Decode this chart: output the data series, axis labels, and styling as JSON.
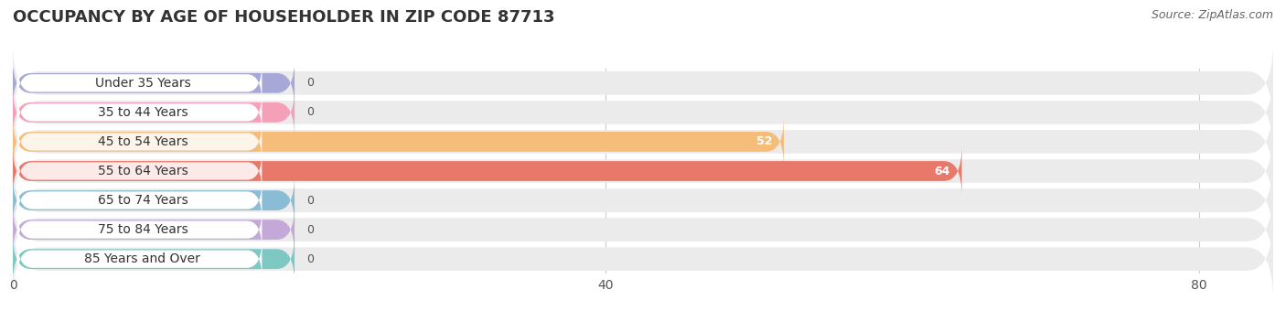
{
  "title": "OCCUPANCY BY AGE OF HOUSEHOLDER IN ZIP CODE 87713",
  "source": "Source: ZipAtlas.com",
  "categories": [
    "Under 35 Years",
    "35 to 44 Years",
    "45 to 54 Years",
    "55 to 64 Years",
    "65 to 74 Years",
    "75 to 84 Years",
    "85 Years and Over"
  ],
  "values": [
    0,
    0,
    52,
    64,
    0,
    0,
    0
  ],
  "bar_colors": [
    "#a8a8d8",
    "#f4a0b8",
    "#f5bc7a",
    "#e8796a",
    "#8abcd6",
    "#c4a8d8",
    "#7ec8c4"
  ],
  "xlim_max": 85,
  "xticks": [
    0,
    40,
    80
  ],
  "label_color_nonzero": "#ffffff",
  "label_color_zero": "#555555",
  "title_fontsize": 13,
  "source_fontsize": 9,
  "bar_label_fontsize": 9,
  "category_fontsize": 10,
  "tick_fontsize": 10,
  "bar_height": 0.68,
  "row_bg_color": "#ebebeb",
  "white_label_bg": "#ffffff",
  "background_color": "#ffffff"
}
